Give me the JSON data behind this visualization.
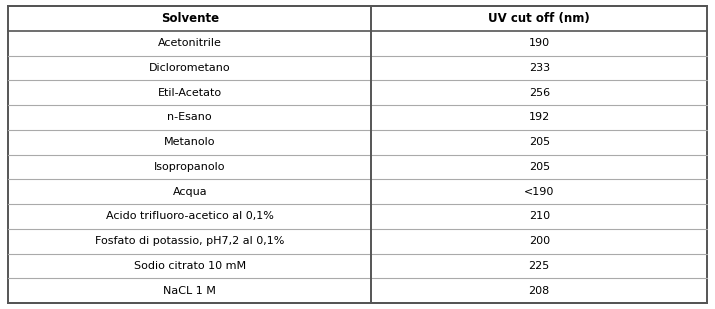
{
  "col_headers": [
    "Solvente",
    "UV cut off (nm)"
  ],
  "rows": [
    [
      "Acetonitrile",
      "190"
    ],
    [
      "Diclorometano",
      "233"
    ],
    [
      "Etil-Acetato",
      "256"
    ],
    [
      "n-Esano",
      "192"
    ],
    [
      "Metanolo",
      "205"
    ],
    [
      "Isopropanolo",
      "205"
    ],
    [
      "Acqua",
      "<190"
    ],
    [
      "Acido trifluoro-acetico al 0,1%",
      "210"
    ],
    [
      "Fosfato di potassio, pH7,2 al 0,1%",
      "200"
    ],
    [
      "Sodio citrato 10 mM",
      "225"
    ],
    [
      "NaCL 1 M",
      "208"
    ]
  ],
  "header_fontsize": 8.5,
  "row_fontsize": 8.0,
  "bg_color": "#ffffff",
  "line_color": "#aaaaaa",
  "outer_line_color": "#555555",
  "header_line_color": "#555555",
  "col_split": 0.52,
  "figsize": [
    7.15,
    3.09
  ],
  "dpi": 100
}
